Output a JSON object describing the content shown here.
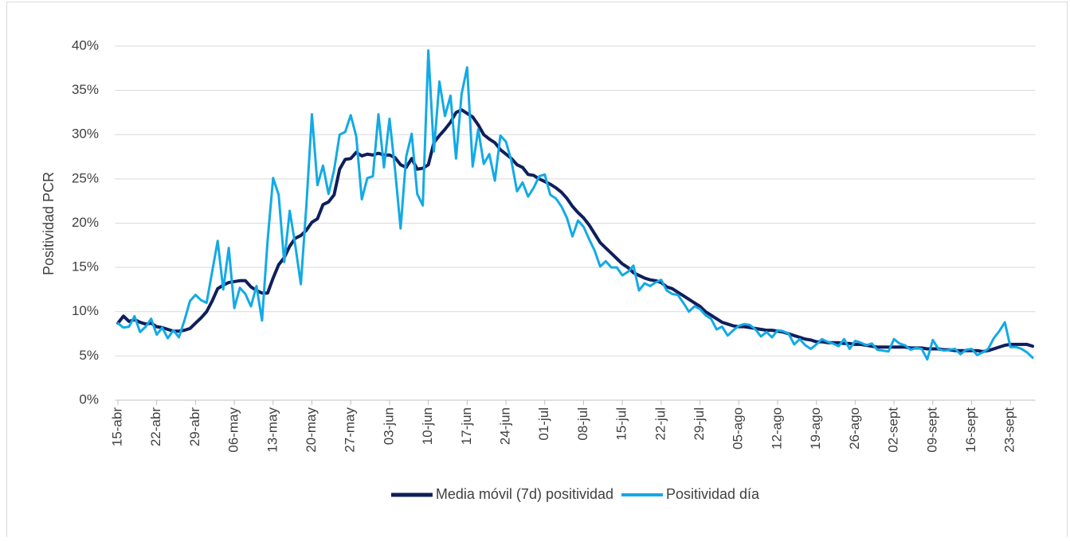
{
  "chart_data": {
    "type": "line",
    "y_label": "Positividad PCR",
    "categories": [
      "15-abr",
      null,
      null,
      null,
      null,
      null,
      null,
      "22-abr",
      null,
      null,
      null,
      null,
      null,
      null,
      "29-abr",
      null,
      null,
      null,
      null,
      null,
      null,
      "06-may",
      null,
      null,
      null,
      null,
      null,
      null,
      "13-may",
      null,
      null,
      null,
      null,
      null,
      null,
      "20-may",
      null,
      null,
      null,
      null,
      null,
      null,
      "27-may",
      null,
      null,
      null,
      null,
      null,
      null,
      "03-jun",
      null,
      null,
      null,
      null,
      null,
      null,
      "10-jun",
      null,
      null,
      null,
      null,
      null,
      null,
      "17-jun",
      null,
      null,
      null,
      null,
      null,
      null,
      "24-jun",
      null,
      null,
      null,
      null,
      null,
      null,
      "01-jul",
      null,
      null,
      null,
      null,
      null,
      null,
      "08-jul",
      null,
      null,
      null,
      null,
      null,
      null,
      "15-jul",
      null,
      null,
      null,
      null,
      null,
      null,
      "22-jul",
      null,
      null,
      null,
      null,
      null,
      null,
      "29-jul",
      null,
      null,
      null,
      null,
      null,
      null,
      "05-ago",
      null,
      null,
      null,
      null,
      null,
      null,
      "12-ago",
      null,
      null,
      null,
      null,
      null,
      null,
      "19-ago",
      null,
      null,
      null,
      null,
      null,
      null,
      "26-ago",
      null,
      null,
      null,
      null,
      null,
      null,
      "02-sept",
      null,
      null,
      null,
      null,
      null,
      null,
      "09-sept",
      null,
      null,
      null,
      null,
      null,
      null,
      "16-sept",
      null,
      null,
      null,
      null,
      null,
      null,
      "23-sept",
      null,
      null,
      null,
      null
    ],
    "series": [
      {
        "name": "Media móvil (7d) positividad",
        "color": "#0f1f5c",
        "width": 4,
        "values": [
          8.7,
          9.5,
          8.9,
          9.1,
          8.8,
          8.6,
          8.7,
          8.3,
          8.2,
          8.0,
          7.8,
          7.8,
          7.9,
          8.1,
          8.7,
          9.3,
          10.0,
          11.2,
          12.6,
          13.0,
          13.3,
          13.4,
          13.5,
          13.5,
          12.8,
          12.4,
          12.1,
          12.1,
          13.8,
          15.3,
          16.1,
          17.4,
          18.3,
          18.6,
          19.2,
          20.1,
          20.5,
          22.1,
          22.4,
          23.2,
          26.1,
          27.2,
          27.3,
          28.0,
          27.6,
          27.8,
          27.7,
          27.9,
          27.7,
          27.7,
          27.4,
          26.6,
          26.3,
          27.3,
          26.1,
          26.2,
          26.6,
          29.1,
          29.9,
          30.6,
          31.4,
          32.5,
          32.8,
          32.4,
          32.0,
          31.1,
          30.0,
          29.5,
          29.1,
          28.3,
          27.8,
          27.3,
          26.6,
          26.3,
          25.5,
          25.4,
          25.0,
          24.7,
          24.4,
          24.0,
          23.5,
          22.8,
          21.9,
          21.2,
          20.6,
          19.8,
          18.8,
          17.8,
          17.2,
          16.6,
          16.0,
          15.4,
          15.0,
          14.4,
          14.1,
          13.8,
          13.6,
          13.5,
          13.3,
          12.8,
          12.6,
          12.2,
          11.8,
          11.4,
          11.0,
          10.6,
          10.0,
          9.6,
          9.2,
          8.8,
          8.6,
          8.4,
          8.3,
          8.3,
          8.2,
          8.1,
          8.0,
          7.9,
          7.9,
          7.8,
          7.7,
          7.5,
          7.3,
          7.1,
          6.9,
          6.8,
          6.6,
          6.6,
          6.5,
          6.5,
          6.5,
          6.4,
          6.4,
          6.3,
          6.3,
          6.2,
          6.1,
          6.0,
          6.0,
          6.0,
          6.0,
          6.0,
          6.0,
          5.9,
          5.9,
          5.9,
          5.8,
          5.8,
          5.8,
          5.7,
          5.7,
          5.6,
          5.6,
          5.6,
          5.6,
          5.6,
          5.5,
          5.6,
          5.8,
          6.0,
          6.2,
          6.3,
          6.3,
          6.3,
          6.3,
          6.1
        ]
      },
      {
        "name": "Positividad día",
        "color": "#12aae6",
        "width": 3,
        "values": [
          8.7,
          8.2,
          8.3,
          9.5,
          7.7,
          8.3,
          9.2,
          7.4,
          8.2,
          7.0,
          7.9,
          7.1,
          9.0,
          11.2,
          11.9,
          11.3,
          11.0,
          14.5,
          18.0,
          12.5,
          17.2,
          10.4,
          12.7,
          12.0,
          10.6,
          12.9,
          9.0,
          18.0,
          25.1,
          23.2,
          15.6,
          21.4,
          17.5,
          13.1,
          22.0,
          32.3,
          24.3,
          26.5,
          23.3,
          26.0,
          30.0,
          30.3,
          32.2,
          29.8,
          22.7,
          25.1,
          25.3,
          32.3,
          26.3,
          31.8,
          26.0,
          19.4,
          27.5,
          30.1,
          23.3,
          22.0,
          39.5,
          28.1,
          36.0,
          32.1,
          34.4,
          27.3,
          34.6,
          37.6,
          26.4,
          30.6,
          26.7,
          27.8,
          24.8,
          29.9,
          29.2,
          27.0,
          23.6,
          24.6,
          23.0,
          24.0,
          25.3,
          25.5,
          23.2,
          22.8,
          21.9,
          20.6,
          18.5,
          20.3,
          19.6,
          18.2,
          16.9,
          15.1,
          15.7,
          15.0,
          15.0,
          14.1,
          14.5,
          15.2,
          12.4,
          13.2,
          12.9,
          13.3,
          13.6,
          12.4,
          12.0,
          11.9,
          11.0,
          10.0,
          10.6,
          10.3,
          9.6,
          9.2,
          8.0,
          8.3,
          7.3,
          7.9,
          8.4,
          8.6,
          8.5,
          8.0,
          7.2,
          7.7,
          7.1,
          7.9,
          7.8,
          7.5,
          6.3,
          6.9,
          6.2,
          5.8,
          6.3,
          6.9,
          6.6,
          6.4,
          6.1,
          6.9,
          5.8,
          6.7,
          6.5,
          6.2,
          6.4,
          5.7,
          5.6,
          5.5,
          6.9,
          6.4,
          6.2,
          5.7,
          5.9,
          5.8,
          4.6,
          6.8,
          5.8,
          5.6,
          5.7,
          5.8,
          5.2,
          5.7,
          5.8,
          5.1,
          5.4,
          5.8,
          7.0,
          7.8,
          8.8,
          6.0,
          6.0,
          5.8,
          5.4,
          4.8
        ]
      }
    ],
    "ylim": [
      0,
      40
    ],
    "yticks": [
      {
        "value": 0,
        "label": "0%"
      },
      {
        "value": 5,
        "label": "5%"
      },
      {
        "value": 10,
        "label": "10%"
      },
      {
        "value": 15,
        "label": "15%"
      },
      {
        "value": 20,
        "label": "20%"
      },
      {
        "value": 25,
        "label": "25%"
      },
      {
        "value": 30,
        "label": "30%"
      },
      {
        "value": 35,
        "label": "35%"
      },
      {
        "value": 40,
        "label": "40%"
      }
    ],
    "grid": true,
    "legend": "bottom"
  }
}
